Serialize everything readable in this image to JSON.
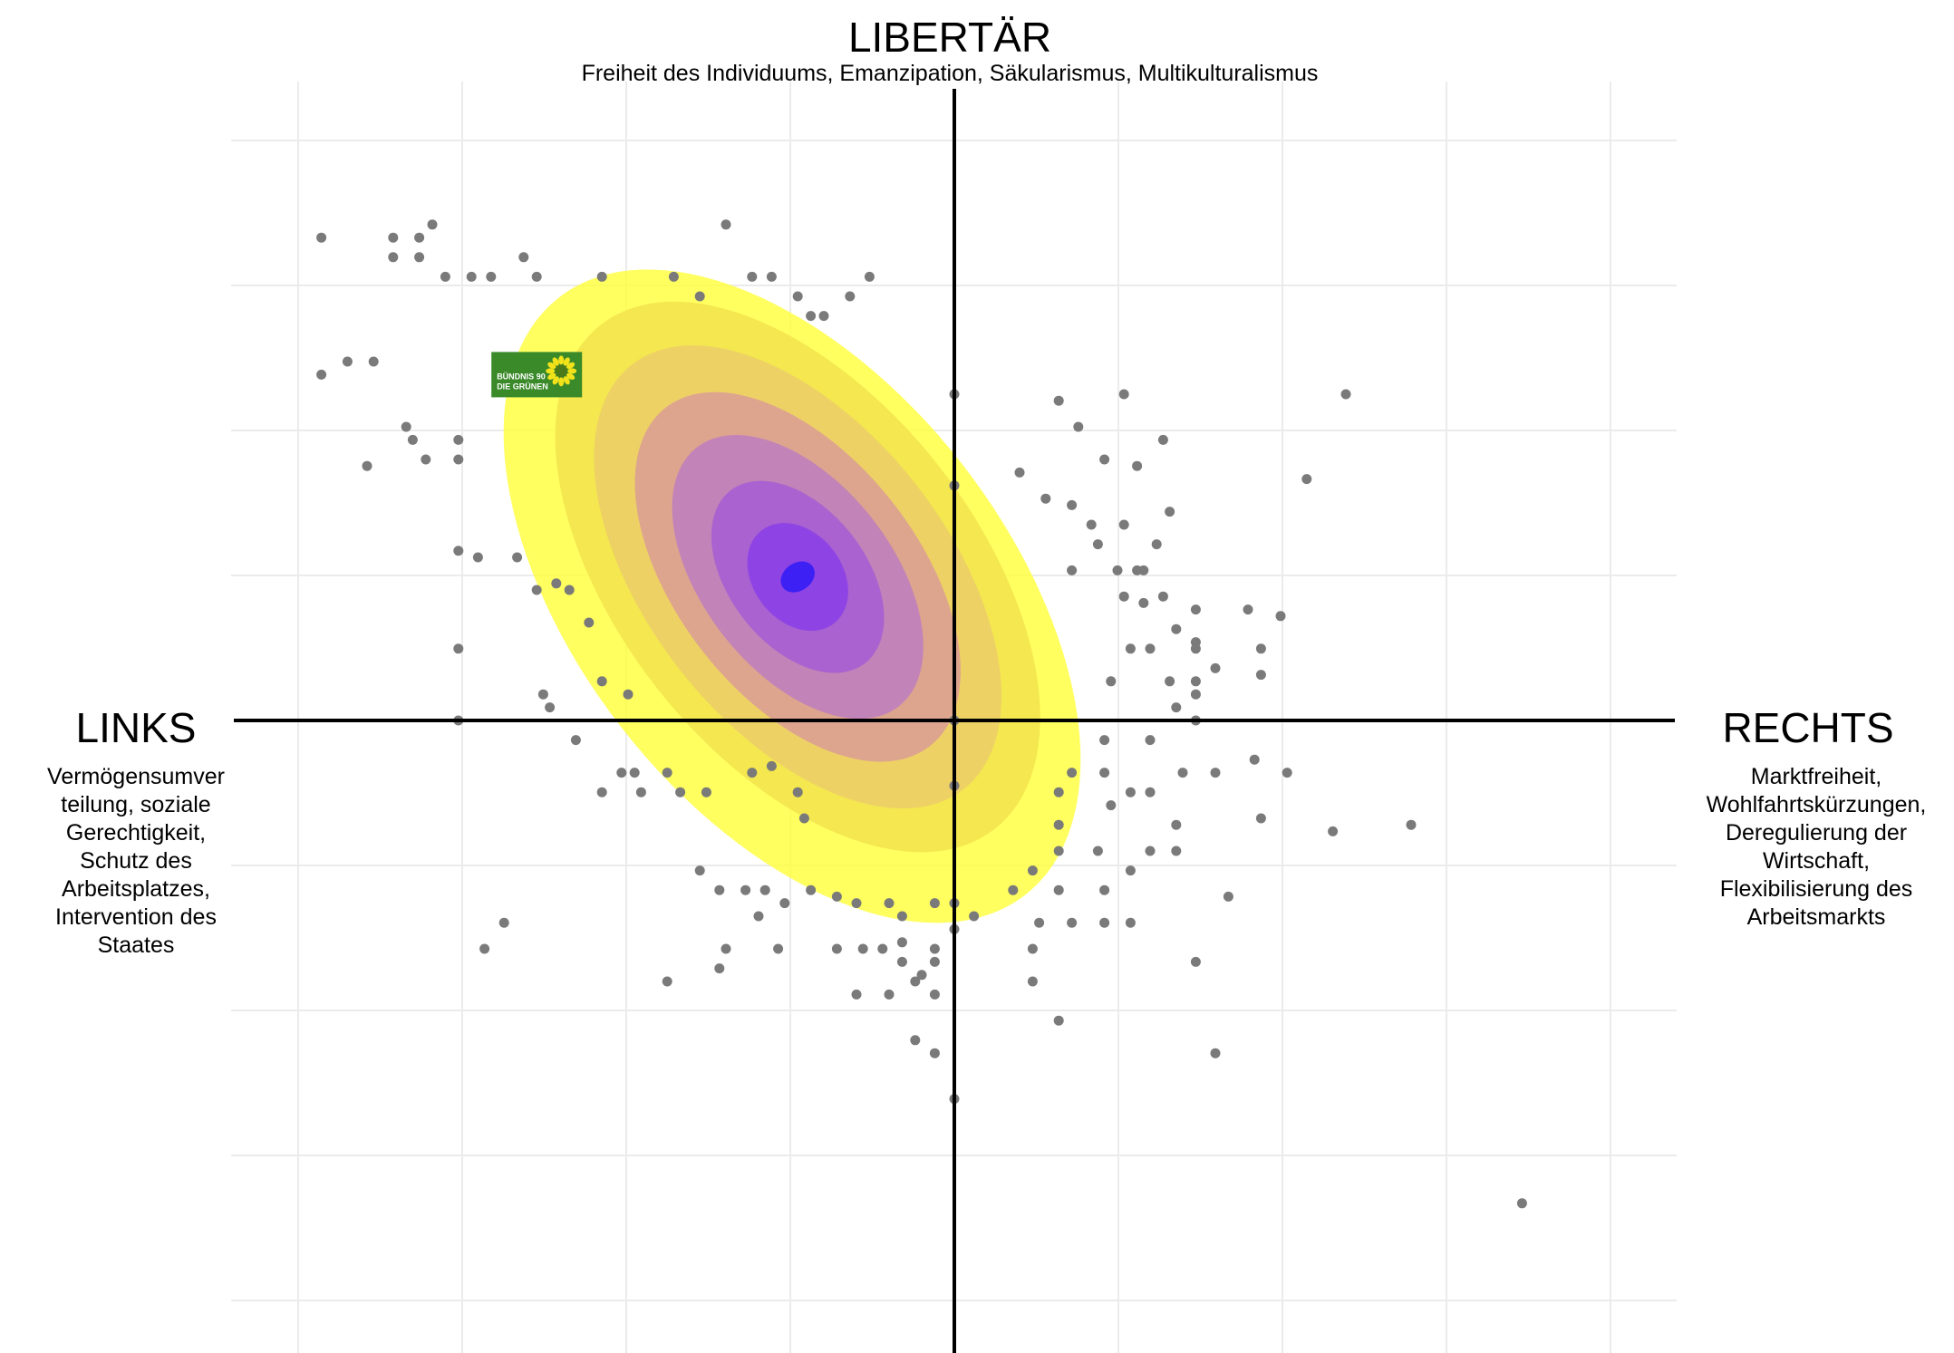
{
  "chart_data": {
    "type": "scatter",
    "title": "",
    "axes": {
      "top": {
        "label": "LIBERTÄR",
        "description": "Freiheit des Individuums, Emanzipation, Säkularismus, Multikulturalismus"
      },
      "left": {
        "label": "LINKS",
        "description_lines": [
          "Vermögensumver",
          "teilung, soziale",
          "Gerechtigkeit,",
          "Schutz des",
          "Arbeitsplatzes,",
          "Intervention des",
          "Staates"
        ]
      },
      "right": {
        "label": "RECHTS",
        "description_lines": [
          "Marktfreiheit,",
          "Wohlfahrtskürzungen,",
          "Deregulierung der",
          "Wirtschaft,",
          "Flexibilisierung des",
          "Arbeitsmarkts"
        ]
      }
    },
    "xlim": [
      -10,
      10
    ],
    "ylim": [
      -10,
      10
    ],
    "grid": true,
    "point_color": "#7a7a7a",
    "density_colors": [
      "#ffff33",
      "#f2e34d",
      "#eccd69",
      "#d99e95",
      "#bd7dbf",
      "#a55dd4",
      "#8a3ee8",
      "#2e1af7"
    ],
    "party_marker": {
      "label_lines": [
        "BÜNDNIS 90",
        "DIE GRÜNEN"
      ],
      "color": "#3a8a2a",
      "sunflower_color": "#f2e21a",
      "x": -6.4,
      "y": 5.3
    },
    "points": [
      [
        -9.7,
        7.4
      ],
      [
        -8.6,
        7.4
      ],
      [
        -8.6,
        7.1
      ],
      [
        -8.2,
        7.4
      ],
      [
        -8.2,
        7.1
      ],
      [
        -8.0,
        7.6
      ],
      [
        -7.8,
        6.8
      ],
      [
        -7.4,
        6.8
      ],
      [
        -7.1,
        6.8
      ],
      [
        -6.6,
        7.1
      ],
      [
        -6.4,
        6.8
      ],
      [
        -5.4,
        6.8
      ],
      [
        -4.3,
        6.8
      ],
      [
        -3.9,
        6.5
      ],
      [
        -3.5,
        7.6
      ],
      [
        -3.1,
        6.8
      ],
      [
        -2.8,
        6.8
      ],
      [
        -2.4,
        6.5
      ],
      [
        -2.2,
        6.2
      ],
      [
        -2.0,
        6.2
      ],
      [
        -1.6,
        6.5
      ],
      [
        -1.3,
        6.8
      ],
      [
        -9.7,
        5.3
      ],
      [
        -9.3,
        5.5
      ],
      [
        -8.3,
        4.3
      ],
      [
        -8.1,
        4.0
      ],
      [
        -9.0,
        3.9
      ],
      [
        -8.4,
        4.5
      ],
      [
        -8.9,
        5.5
      ],
      [
        -7.6,
        4.3
      ],
      [
        -7.6,
        4.0
      ],
      [
        -0.0,
        5.0
      ],
      [
        -0.0,
        3.6
      ],
      [
        1.6,
        4.9
      ],
      [
        1.9,
        4.5
      ],
      [
        2.6,
        5.0
      ],
      [
        2.3,
        4.0
      ],
      [
        2.8,
        3.9
      ],
      [
        3.2,
        4.3
      ],
      [
        3.3,
        3.2
      ],
      [
        5.4,
        3.7
      ],
      [
        6.0,
        5.0
      ],
      [
        1.0,
        3.8
      ],
      [
        1.4,
        3.4
      ],
      [
        1.8,
        3.3
      ],
      [
        2.1,
        3.0
      ],
      [
        2.6,
        3.0
      ],
      [
        1.8,
        2.3
      ],
      [
        2.2,
        2.7
      ],
      [
        2.5,
        2.3
      ],
      [
        2.8,
        2.3
      ],
      [
        3.1,
        2.7
      ],
      [
        2.9,
        2.3
      ],
      [
        2.6,
        1.9
      ],
      [
        2.9,
        1.8
      ],
      [
        3.2,
        1.9
      ],
      [
        3.7,
        1.7
      ],
      [
        3.4,
        1.4
      ],
      [
        3.0,
        1.1
      ],
      [
        3.7,
        1.2
      ],
      [
        3.7,
        0.6
      ],
      [
        4.5,
        1.7
      ],
      [
        5.0,
        1.6
      ],
      [
        4.7,
        1.1
      ],
      [
        3.7,
        1.1
      ],
      [
        2.7,
        1.1
      ],
      [
        2.4,
        0.6
      ],
      [
        3.3,
        0.6
      ],
      [
        3.4,
        0.2
      ],
      [
        3.7,
        0.4
      ],
      [
        3.7,
        0.0
      ],
      [
        -7.6,
        2.6
      ],
      [
        -7.3,
        2.5
      ],
      [
        -6.7,
        2.5
      ],
      [
        -6.4,
        2.0
      ],
      [
        -6.1,
        2.1
      ],
      [
        -5.9,
        2.0
      ],
      [
        -5.6,
        1.5
      ],
      [
        -5.4,
        0.6
      ],
      [
        -5.0,
        0.4
      ],
      [
        -7.6,
        1.1
      ],
      [
        -6.3,
        0.4
      ],
      [
        -7.6,
        0.0
      ],
      [
        -6.2,
        0.2
      ],
      [
        -5.8,
        -0.3
      ],
      [
        -5.1,
        -0.8
      ],
      [
        -4.9,
        -0.8
      ],
      [
        -4.4,
        -0.8
      ],
      [
        -4.2,
        -1.1
      ],
      [
        -4.8,
        -1.1
      ],
      [
        -5.4,
        -1.1
      ],
      [
        -3.8,
        -1.1
      ],
      [
        -3.1,
        -0.8
      ],
      [
        -2.8,
        -0.7
      ],
      [
        -2.4,
        -1.1
      ],
      [
        -2.3,
        -1.5
      ],
      [
        -6.9,
        -3.1
      ],
      [
        -7.2,
        -3.5
      ],
      [
        -4.4,
        -4.0
      ],
      [
        -3.6,
        -3.8
      ],
      [
        -3.0,
        -3.0
      ],
      [
        -2.9,
        -2.6
      ],
      [
        -3.2,
        -2.6
      ],
      [
        -3.6,
        -2.6
      ],
      [
        -3.9,
        -2.3
      ],
      [
        -2.6,
        -2.8
      ],
      [
        -2.2,
        -2.6
      ],
      [
        -1.8,
        -2.7
      ],
      [
        -1.5,
        -2.8
      ],
      [
        -1.0,
        -2.8
      ],
      [
        -0.3,
        -2.8
      ],
      [
        -0.8,
        -3.0
      ],
      [
        -0.8,
        -3.4
      ],
      [
        -1.4,
        -3.5
      ],
      [
        -2.7,
        -3.5
      ],
      [
        -3.5,
        -3.5
      ],
      [
        -1.8,
        -3.5
      ],
      [
        -1.1,
        -3.5
      ],
      [
        -0.8,
        -3.7
      ],
      [
        -0.3,
        -3.5
      ],
      [
        -0.5,
        -3.9
      ],
      [
        -0.3,
        -4.2
      ],
      [
        -0.6,
        -4.0
      ],
      [
        -1.0,
        -4.2
      ],
      [
        -1.5,
        -4.2
      ],
      [
        -0.3,
        -5.1
      ],
      [
        0.0,
        -2.8
      ],
      [
        0.0,
        -3.2
      ],
      [
        0.3,
        -3.0
      ],
      [
        0.9,
        -2.6
      ],
      [
        1.2,
        -2.3
      ],
      [
        1.6,
        -2.0
      ],
      [
        1.6,
        -1.6
      ],
      [
        1.6,
        -1.1
      ],
      [
        1.8,
        -0.8
      ],
      [
        2.3,
        -0.8
      ],
      [
        2.3,
        -0.3
      ],
      [
        2.4,
        -1.3
      ],
      [
        2.7,
        -1.1
      ],
      [
        2.2,
        -2.0
      ],
      [
        2.7,
        -2.3
      ],
      [
        2.3,
        -2.6
      ],
      [
        1.6,
        -2.6
      ],
      [
        1.3,
        -3.1
      ],
      [
        1.8,
        -3.1
      ],
      [
        2.3,
        -3.1
      ],
      [
        2.7,
        -3.1
      ],
      [
        1.2,
        -4.0
      ],
      [
        1.6,
        -4.6
      ],
      [
        1.2,
        -3.5
      ],
      [
        3.0,
        -0.3
      ],
      [
        3.0,
        -1.1
      ],
      [
        3.5,
        -0.8
      ],
      [
        3.4,
        -1.6
      ],
      [
        3.4,
        -2.0
      ],
      [
        3.0,
        -2.0
      ],
      [
        4.0,
        -0.8
      ],
      [
        4.2,
        -2.7
      ],
      [
        4.6,
        -0.6
      ],
      [
        4.7,
        -1.5
      ],
      [
        5.1,
        -0.8
      ],
      [
        5.8,
        -1.7
      ],
      [
        0.0,
        -0.0
      ],
      [
        0.0,
        -1.0
      ],
      [
        0.0,
        -5.8
      ],
      [
        4.0,
        0.8
      ],
      [
        4.7,
        0.7
      ],
      [
        3.7,
        -3.7
      ],
      [
        4.0,
        -5.1
      ],
      [
        7.0,
        -1.6
      ],
      [
        8.7,
        -7.4
      ],
      [
        -0.3,
        -3.7
      ],
      [
        -0.6,
        -4.9
      ]
    ]
  }
}
